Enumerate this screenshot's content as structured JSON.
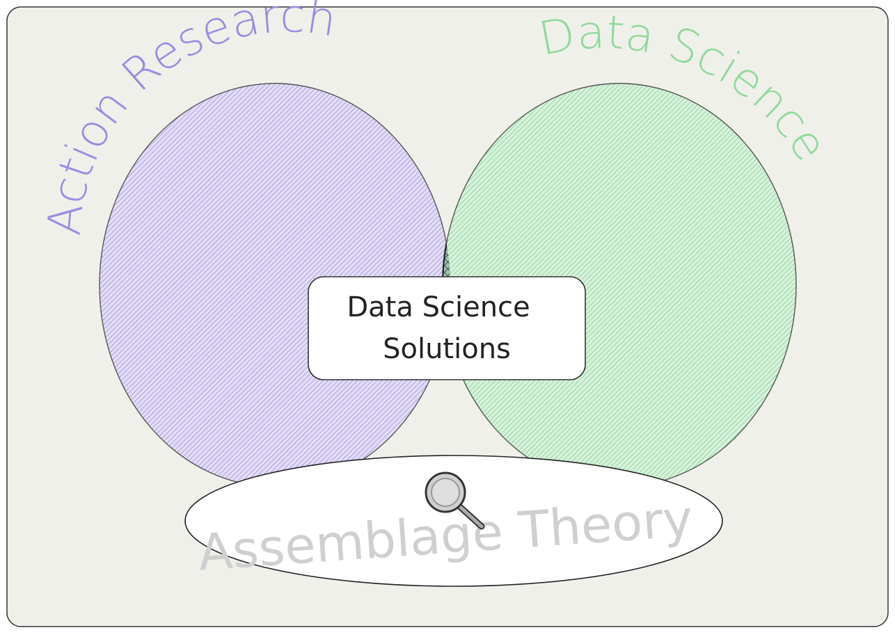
{
  "diagram": {
    "sets": [
      {
        "id": "action-research",
        "label": "Action Research",
        "fill": "#b8a9e6",
        "stroke": "#444444",
        "text_color": "#9b8ce0"
      },
      {
        "id": "data-science",
        "label": "Data Science",
        "fill": "#9be0a6",
        "stroke": "#444444",
        "text_color": "#8fd99a"
      }
    ],
    "intersection": {
      "fill": "#5f8f78",
      "label_lines": [
        "Data Science",
        "Solutions"
      ]
    },
    "base": {
      "label": "Assemblage Theory",
      "text_color": "#cfcfcf",
      "icon": "magnifier-icon"
    },
    "colors": {
      "frame_bg": "#f0f0eb",
      "frame_stroke": "#333333"
    }
  }
}
